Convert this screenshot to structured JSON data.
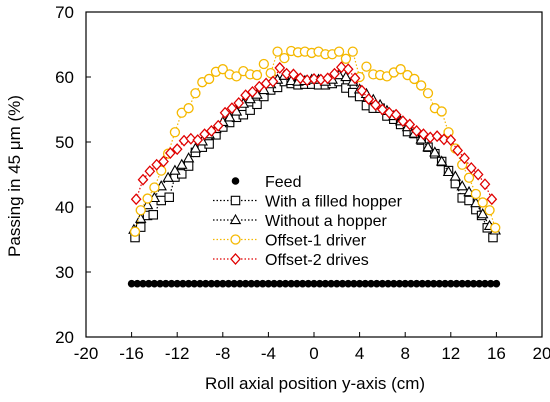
{
  "chart_data": {
    "type": "scatter",
    "xlabel": "Roll axial position y-axis (cm)",
    "ylabel": "Passing in 45 μm (%)",
    "xlim": [
      -20,
      20
    ],
    "ylim": [
      20,
      70
    ],
    "xticks": [
      -20,
      -16,
      -12,
      -8,
      -4,
      0,
      4,
      8,
      12,
      16,
      20
    ],
    "yticks": [
      20,
      30,
      40,
      50,
      60,
      70
    ],
    "grid": false,
    "legend_position": "center",
    "series": [
      {
        "name": "Feed",
        "marker": "filled-circle",
        "line": "none",
        "color": "#000000",
        "x": [
          -16,
          -15.5,
          -15,
          -14.5,
          -14,
          -13.5,
          -13,
          -12.5,
          -12,
          -11.5,
          -11,
          -10.5,
          -10,
          -9.5,
          -9,
          -8.5,
          -8,
          -7.5,
          -7,
          -6.5,
          -6,
          -5.5,
          -5,
          -4.5,
          -4,
          -3.5,
          -3,
          -2.5,
          -2,
          -1.5,
          -1,
          -0.5,
          0,
          0.5,
          1,
          1.5,
          2,
          2.5,
          3,
          3.5,
          4,
          4.5,
          5,
          5.5,
          6,
          6.5,
          7,
          7.5,
          8,
          8.5,
          9,
          9.5,
          10,
          10.5,
          11,
          11.5,
          12,
          12.5,
          13,
          13.5,
          14,
          14.5,
          15,
          15.5,
          16
        ],
        "y": [
          28.2,
          28.2,
          28.2,
          28.2,
          28.2,
          28.2,
          28.2,
          28.2,
          28.2,
          28.2,
          28.2,
          28.2,
          28.2,
          28.2,
          28.2,
          28.2,
          28.2,
          28.2,
          28.2,
          28.2,
          28.2,
          28.2,
          28.2,
          28.2,
          28.2,
          28.2,
          28.2,
          28.2,
          28.2,
          28.2,
          28.2,
          28.2,
          28.2,
          28.2,
          28.2,
          28.2,
          28.2,
          28.2,
          28.2,
          28.2,
          28.2,
          28.2,
          28.2,
          28.2,
          28.2,
          28.2,
          28.2,
          28.2,
          28.2,
          28.2,
          28.2,
          28.2,
          28.2,
          28.2,
          28.2,
          28.2,
          28.2,
          28.2,
          28.2,
          28.2,
          28.2,
          28.2,
          28.2,
          28.2,
          28.2
        ]
      },
      {
        "name": "With a filled hopper",
        "marker": "open-square",
        "line": "dotted",
        "color": "#000000",
        "x": [
          -15.7,
          -15.2,
          -14.6,
          -14.1,
          -13.4,
          -12.7,
          -12.2,
          -11.6,
          -11.0,
          -10.4,
          -9.8,
          -9.2,
          -8.6,
          -8.0,
          -7.4,
          -6.8,
          -6.2,
          -5.6,
          -5.0,
          -4.4,
          -3.8,
          -3.2,
          -2.6,
          -2.0,
          -1.4,
          -0.8,
          -0.2,
          0.4,
          1.0,
          1.6,
          2.2,
          2.8,
          3.4,
          4.0,
          4.6,
          5.2,
          5.8,
          6.4,
          7.0,
          7.6,
          8.2,
          8.8,
          9.4,
          10.0,
          10.6,
          11.2,
          11.8,
          12.4,
          13.0,
          13.6,
          14.2,
          14.7,
          15.2,
          15.7
        ],
        "y": [
          35.3,
          36.9,
          38.7,
          38.8,
          41.0,
          41.5,
          44.6,
          45.1,
          46.3,
          48.4,
          49.2,
          49.7,
          51.1,
          52.3,
          53.0,
          53.8,
          54.2,
          54.9,
          55.8,
          57.0,
          58.0,
          58.4,
          59.3,
          59.0,
          58.8,
          58.9,
          58.9,
          58.8,
          58.8,
          59.0,
          59.3,
          58.3,
          57.6,
          57.0,
          55.6,
          55.2,
          55.2,
          54.0,
          53.5,
          52.7,
          51.6,
          51.3,
          50.3,
          49.2,
          48.2,
          47.0,
          45.6,
          43.6,
          41.4,
          41.0,
          39.6,
          38.7,
          36.8,
          35.3
        ]
      },
      {
        "name": "Without a hopper",
        "marker": "open-triangle",
        "line": "dotted",
        "color": "#000000",
        "x": [
          -15.8,
          -15.2,
          -14.6,
          -14.0,
          -13.4,
          -12.8,
          -12.2,
          -11.6,
          -11.0,
          -10.4,
          -9.8,
          -9.2,
          -8.6,
          -8.0,
          -7.4,
          -6.8,
          -6.2,
          -5.6,
          -5.0,
          -4.4,
          -3.8,
          -3.2,
          -2.6,
          -2.0,
          -1.4,
          -0.8,
          -0.2,
          0.4,
          1.0,
          1.6,
          2.2,
          2.8,
          3.4,
          4.0,
          4.6,
          5.2,
          5.8,
          6.4,
          7.0,
          7.6,
          8.2,
          8.8,
          9.4,
          10.0,
          10.6,
          11.2,
          11.8,
          12.4,
          13.0,
          13.6,
          14.2,
          14.8,
          15.4,
          15.9
        ],
        "y": [
          36.5,
          38.2,
          40.3,
          41.4,
          43.2,
          44.5,
          45.6,
          46.5,
          47.5,
          49.0,
          50.1,
          51.2,
          52.0,
          53.1,
          53.8,
          54.7,
          55.9,
          56.6,
          57.3,
          58.0,
          58.9,
          59.6,
          60.2,
          59.4,
          59.3,
          59.4,
          59.6,
          59.6,
          59.3,
          59.6,
          60.3,
          60.0,
          59.3,
          58.1,
          57.4,
          56.5,
          55.7,
          54.8,
          54.0,
          53.2,
          52.3,
          51.3,
          50.4,
          49.2,
          48.4,
          47.0,
          45.4,
          44.7,
          43.2,
          42.3,
          40.6,
          38.9,
          37.1,
          36.4
        ]
      },
      {
        "name": "Offset-1 driver",
        "marker": "open-circle",
        "line": "dotted",
        "color": "#f5b800",
        "x": [
          -15.7,
          -15.2,
          -14.6,
          -14.0,
          -13.4,
          -12.8,
          -12.2,
          -11.6,
          -11.0,
          -10.4,
          -9.8,
          -9.2,
          -8.6,
          -8.0,
          -7.4,
          -6.8,
          -6.2,
          -5.6,
          -5.0,
          -4.4,
          -3.8,
          -3.2,
          -2.6,
          -2.0,
          -1.4,
          -0.8,
          -0.2,
          0.4,
          1.0,
          1.6,
          2.2,
          2.8,
          3.4,
          4.0,
          4.6,
          5.2,
          5.8,
          6.4,
          7.0,
          7.6,
          8.2,
          8.8,
          9.4,
          10.0,
          10.6,
          11.2,
          11.8,
          12.4,
          13.0,
          13.6,
          14.2,
          14.8,
          15.4,
          15.9
        ],
        "y": [
          36.2,
          39.5,
          41.3,
          43.0,
          45.6,
          48.2,
          51.5,
          54.5,
          55.2,
          57.5,
          59.2,
          59.7,
          60.8,
          61.2,
          60.4,
          60.1,
          60.9,
          60.4,
          60.3,
          62.0,
          60.6,
          63.9,
          62.9,
          64.0,
          63.8,
          63.9,
          63.7,
          63.9,
          63.5,
          63.5,
          63.9,
          62.8,
          63.9,
          60.0,
          61.6,
          60.4,
          60.3,
          60.1,
          60.7,
          61.2,
          60.3,
          59.7,
          58.7,
          57.5,
          55.2,
          54.7,
          51.5,
          49.0,
          46.5,
          44.5,
          42.0,
          40.7,
          39.5,
          36.8
        ]
      },
      {
        "name": "Offset-2 drives",
        "marker": "open-diamond",
        "line": "dotted",
        "color": "#e00000",
        "x": [
          -15.6,
          -15.0,
          -14.4,
          -13.8,
          -13.2,
          -12.6,
          -12.0,
          -11.4,
          -10.8,
          -10.2,
          -9.6,
          -9.0,
          -8.4,
          -7.8,
          -7.2,
          -6.6,
          -6.0,
          -5.4,
          -4.8,
          -4.2,
          -3.6,
          -3.0,
          -2.4,
          -1.8,
          -1.2,
          -0.6,
          0.0,
          0.6,
          1.2,
          1.8,
          2.4,
          3.0,
          3.6,
          4.2,
          4.8,
          5.4,
          6.0,
          6.6,
          7.2,
          7.8,
          8.4,
          9.0,
          9.6,
          10.2,
          10.8,
          11.4,
          12.0,
          12.6,
          13.2,
          13.8,
          14.4,
          15.0,
          15.6
        ],
        "y": [
          41.2,
          44.2,
          45.5,
          46.5,
          47.0,
          48.3,
          48.9,
          50.2,
          50.5,
          50.3,
          51.2,
          51.7,
          52.5,
          54.5,
          55.2,
          56.0,
          57.2,
          57.7,
          58.5,
          59.0,
          59.3,
          61.4,
          60.5,
          60.4,
          59.8,
          59.5,
          59.7,
          59.6,
          59.8,
          60.5,
          61.5,
          61.2,
          59.8,
          57.9,
          56.6,
          55.7,
          55.0,
          54.5,
          54.2,
          53.2,
          52.7,
          51.7,
          51.2,
          50.7,
          50.9,
          50.4,
          50.3,
          48.7,
          47.5,
          46.0,
          45.0,
          43.5,
          41.2
        ]
      }
    ]
  }
}
